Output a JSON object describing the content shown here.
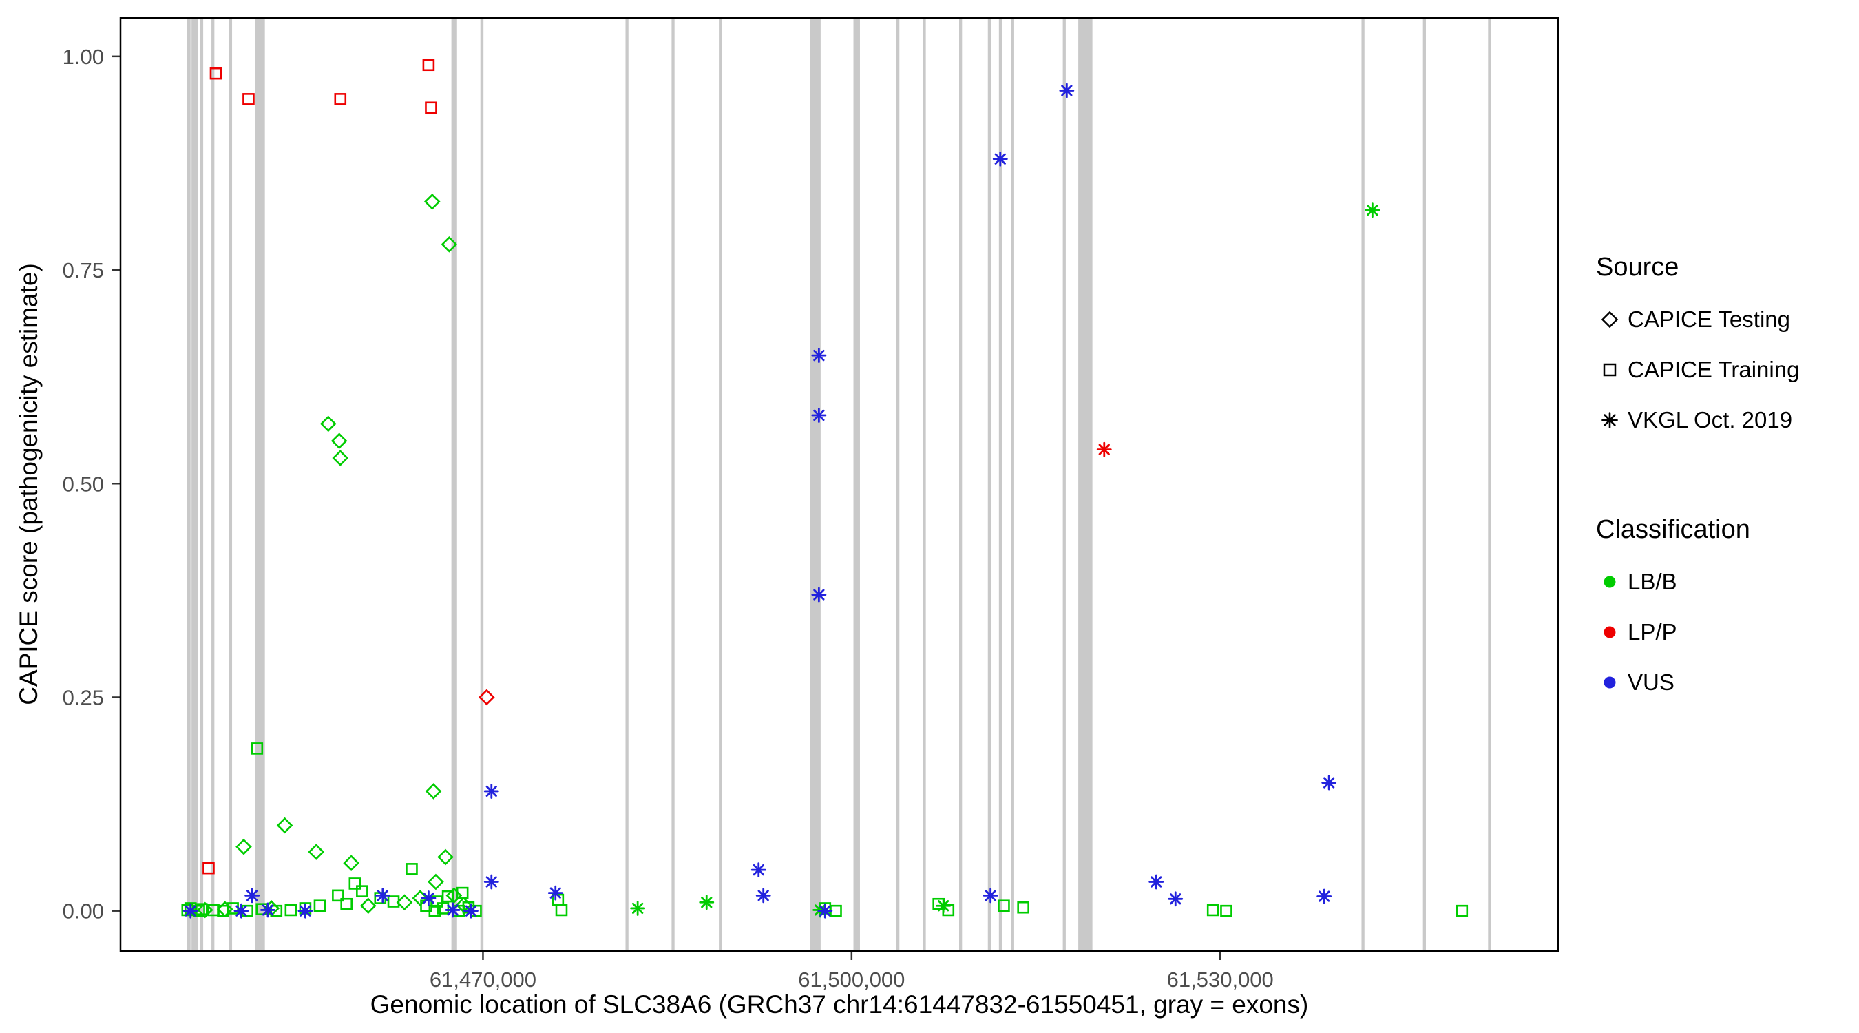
{
  "legend": {
    "source": {
      "title": "Source",
      "items": [
        {
          "label": "CAPICE Testing",
          "shape": "diamond"
        },
        {
          "label": "CAPICE Training",
          "shape": "square"
        },
        {
          "label": "VKGL Oct. 2019",
          "shape": "asterisk"
        }
      ]
    },
    "classification": {
      "title": "Classification",
      "items": [
        {
          "label": "LB/B",
          "color": "#00cc00"
        },
        {
          "label": "LP/P",
          "color": "#ee0000"
        },
        {
          "label": "VUS",
          "color": "#2222dd"
        }
      ]
    }
  },
  "chart_data": {
    "type": "scatter",
    "xlabel": "Genomic location of SLC38A6 (GRCh37 chr14:61447832-61550451, gray = exons)",
    "ylabel": "CAPICE score (pathogenicity estimate)",
    "xlim": [
      61440500,
      61557500
    ],
    "ylim": [
      -0.047,
      1.045
    ],
    "x_ticks": [
      {
        "value": 61470000,
        "label": "61,470,000"
      },
      {
        "value": 61500000,
        "label": "61,500,000"
      },
      {
        "value": 61530000,
        "label": "61,530,000"
      }
    ],
    "y_ticks": [
      {
        "value": 0,
        "label": "0.00"
      },
      {
        "value": 0.25,
        "label": "0.25"
      },
      {
        "value": 0.5,
        "label": "0.50"
      },
      {
        "value": 0.75,
        "label": "0.75"
      },
      {
        "value": 1.0,
        "label": "1.00"
      }
    ],
    "exon_color": "#c9c9c9",
    "exons": [
      [
        61445900,
        61446200
      ],
      [
        61446280,
        61446780
      ],
      [
        61447000,
        61447230
      ],
      [
        61447900,
        61448140
      ],
      [
        61449350,
        61449580
      ],
      [
        61451450,
        61452250
      ],
      [
        61467430,
        61467890
      ],
      [
        61469790,
        61470040
      ],
      [
        61481600,
        61481840
      ],
      [
        61485350,
        61485590
      ],
      [
        61489200,
        61489440
      ],
      [
        61496600,
        61497480
      ],
      [
        61500150,
        61500680
      ],
      [
        61503650,
        61503890
      ],
      [
        61505800,
        61506040
      ],
      [
        61508750,
        61508990
      ],
      [
        61511090,
        61511330
      ],
      [
        61511990,
        61512230
      ],
      [
        61512990,
        61513230
      ],
      [
        61517190,
        61517430
      ],
      [
        61518450,
        61519600
      ],
      [
        61541500,
        61541740
      ],
      [
        61546500,
        61546740
      ],
      [
        61551800,
        61552040
      ]
    ],
    "colors": {
      "LB/B": "#00cc00",
      "LP/P": "#ee0000",
      "VUS": "#2222dd"
    },
    "shapes": {
      "CAPICE Testing": "diamond",
      "CAPICE Training": "square",
      "VKGL Oct. 2019": "asterisk"
    },
    "series": [
      {
        "source": "CAPICE Testing",
        "classification": "LB/B",
        "points": [
          [
            61465870,
            0.83
          ],
          [
            61467250,
            0.78
          ],
          [
            61457410,
            0.57
          ],
          [
            61458300,
            0.55
          ],
          [
            61458390,
            0.53
          ],
          [
            61465970,
            0.14
          ],
          [
            61453870,
            0.1
          ],
          [
            61450530,
            0.075
          ],
          [
            61456430,
            0.069
          ],
          [
            61459280,
            0.056
          ],
          [
            61466950,
            0.063
          ],
          [
            61466160,
            0.034
          ],
          [
            61464890,
            0.015
          ],
          [
            61467640,
            0.018
          ],
          [
            61468430,
            0.007
          ],
          [
            61447380,
            0.001
          ],
          [
            61452790,
            0.003
          ],
          [
            61460660,
            0.006
          ],
          [
            61463610,
            0.01
          ],
          [
            61449000,
            0.002
          ]
        ]
      },
      {
        "source": "CAPICE Testing",
        "classification": "LP/P",
        "points": [
          [
            61470300,
            0.25
          ]
        ]
      },
      {
        "source": "CAPICE Training",
        "classification": "LB/B",
        "points": [
          [
            61451610,
            0.19
          ],
          [
            61464200,
            0.049
          ],
          [
            61459570,
            0.032
          ],
          [
            61460160,
            0.023
          ],
          [
            61458200,
            0.018
          ],
          [
            61461640,
            0.015
          ],
          [
            61462720,
            0.011
          ],
          [
            61458890,
            0.008
          ],
          [
            61456720,
            0.006
          ],
          [
            61455540,
            0.003
          ],
          [
            61454360,
            0.001
          ],
          [
            61453180,
            0
          ],
          [
            61452000,
            0.002
          ],
          [
            61450820,
            0
          ],
          [
            61449640,
            0.003
          ],
          [
            61448850,
            0
          ],
          [
            61448070,
            0.001
          ],
          [
            61446890,
            0
          ],
          [
            61446200,
            0.003
          ],
          [
            61466070,
            0
          ],
          [
            61466750,
            0.003
          ],
          [
            61465380,
            0.006
          ],
          [
            61468030,
            0
          ],
          [
            61468820,
            0.004
          ],
          [
            61469410,
            0
          ],
          [
            61467150,
            0.017
          ],
          [
            61468330,
            0.021
          ],
          [
            61466260,
            0.011
          ],
          [
            61445950,
            0.001
          ],
          [
            61447100,
            0.002
          ],
          [
            61476100,
            0.013
          ],
          [
            61476390,
            0.001
          ],
          [
            61497840,
            0.003
          ],
          [
            61498720,
            0
          ],
          [
            61507080,
            0.008
          ],
          [
            61507870,
            0.001
          ],
          [
            61512390,
            0.006
          ],
          [
            61513970,
            0.004
          ],
          [
            61529410,
            0.001
          ],
          [
            61530490,
            0
          ],
          [
            61549670,
            0
          ]
        ]
      },
      {
        "source": "CAPICE Training",
        "classification": "LP/P",
        "points": [
          [
            61448260,
            0.98
          ],
          [
            61450920,
            0.95
          ],
          [
            61458390,
            0.95
          ],
          [
            61465570,
            0.99
          ],
          [
            61465770,
            0.94
          ],
          [
            61447670,
            0.05
          ]
        ]
      },
      {
        "source": "VKGL Oct. 2019",
        "classification": "LB/B",
        "points": [
          [
            61542390,
            0.82
          ],
          [
            61482590,
            0.003
          ],
          [
            61488200,
            0.01
          ],
          [
            61497440,
            0.001
          ],
          [
            61507470,
            0.006
          ]
        ]
      },
      {
        "source": "VKGL Oct. 2019",
        "classification": "LP/P",
        "points": [
          [
            61520560,
            0.54
          ]
        ]
      },
      {
        "source": "VKGL Oct. 2019",
        "classification": "VUS",
        "points": [
          [
            61517510,
            0.96
          ],
          [
            61512100,
            0.88
          ],
          [
            61497340,
            0.65
          ],
          [
            61497340,
            0.58
          ],
          [
            61497340,
            0.37
          ],
          [
            61538850,
            0.15
          ],
          [
            61470690,
            0.14
          ],
          [
            61492430,
            0.048
          ],
          [
            61470690,
            0.034
          ],
          [
            61492820,
            0.018
          ],
          [
            61511310,
            0.018
          ],
          [
            61475900,
            0.021
          ],
          [
            61524790,
            0.034
          ],
          [
            61526360,
            0.014
          ],
          [
            61538460,
            0.017
          ],
          [
            61451210,
            0.018
          ],
          [
            61461840,
            0.018
          ],
          [
            61465570,
            0.015
          ],
          [
            61446200,
            0
          ],
          [
            61450330,
            0
          ],
          [
            61452490,
            0.001
          ],
          [
            61455540,
            0
          ],
          [
            61467540,
            0.001
          ],
          [
            61469020,
            0
          ],
          [
            61497840,
            0
          ]
        ]
      }
    ]
  }
}
